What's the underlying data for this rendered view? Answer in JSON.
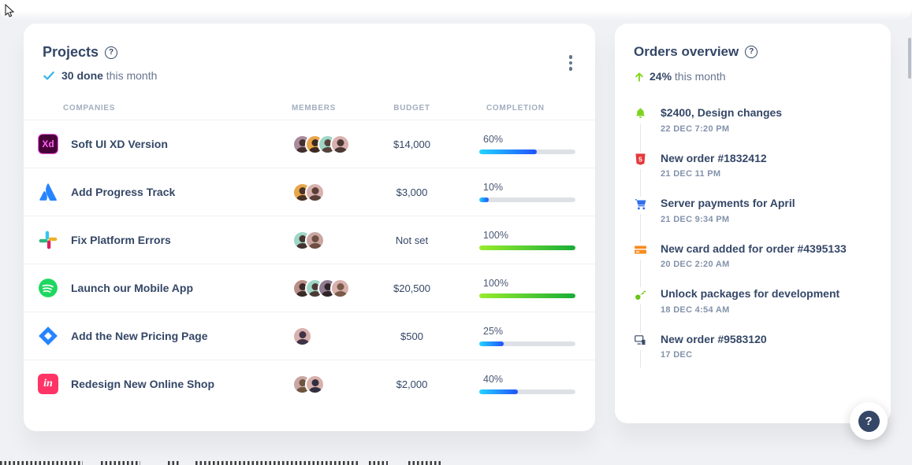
{
  "projects_card": {
    "title": "Projects",
    "title_help_icon": "?",
    "done_count": "30 done",
    "done_rest": "this month",
    "menu_icon": "kebab-menu",
    "columns": [
      "Companies",
      "Members",
      "Budget",
      "Completion"
    ],
    "progress_gradients": {
      "blue": [
        "#21d4fd",
        "#2152ff"
      ],
      "green": [
        "#98ec2d",
        "#17ad37"
      ]
    },
    "rows": [
      {
        "company": "Soft UI XD Version",
        "icon": "adobe-xd",
        "budget": "$14,000",
        "completion": 60,
        "bar": "blue",
        "avatars": [
          {
            "bg": "#a98b9c",
            "fg": "#43302e"
          },
          {
            "bg": "#e8a64a",
            "fg": "#3c2a22"
          },
          {
            "bg": "#9fd6c6",
            "fg": "#57423c"
          },
          {
            "bg": "#d8b0ad",
            "fg": "#4a3835"
          }
        ]
      },
      {
        "company": "Add Progress Track",
        "icon": "atlassian",
        "budget": "$3,000",
        "completion": 10,
        "bar": "blue",
        "avatars": [
          {
            "bg": "#e8a64a",
            "fg": "#4a3226"
          },
          {
            "bg": "#d8b0ad",
            "fg": "#584038"
          }
        ]
      },
      {
        "company": "Fix Platform Errors",
        "icon": "slack",
        "budget": "Not set",
        "completion": 100,
        "bar": "green",
        "avatars": [
          {
            "bg": "#9fd6c6",
            "fg": "#45332f"
          },
          {
            "bg": "#c9a6a2",
            "fg": "#6e4f41"
          }
        ]
      },
      {
        "company": "Launch our Mobile App",
        "icon": "spotify",
        "budget": "$20,500",
        "completion": 100,
        "bar": "green",
        "avatars": [
          {
            "bg": "#b98e87",
            "fg": "#3a2b28"
          },
          {
            "bg": "#9fd6c6",
            "fg": "#4a3a35"
          },
          {
            "bg": "#8f7b8e",
            "fg": "#302428"
          },
          {
            "bg": "#d8b0ad",
            "fg": "#7a5a48"
          }
        ]
      },
      {
        "company": "Add the New Pricing Page",
        "icon": "jira",
        "budget": "$500",
        "completion": 25,
        "bar": "blue",
        "avatars": [
          {
            "bg": "#d8b0ad",
            "fg": "#3f3347"
          }
        ]
      },
      {
        "company": "Redesign New Online Shop",
        "icon": "invision",
        "budget": "$2,000",
        "completion": 40,
        "bar": "blue",
        "avatars": [
          {
            "bg": "#c9a6a2",
            "fg": "#6e5540"
          },
          {
            "bg": "#d8b0ad",
            "fg": "#32303e"
          }
        ]
      }
    ]
  },
  "orders_card": {
    "title": "Orders overview",
    "title_help_icon": "?",
    "growth": "24%",
    "growth_rest": "this month",
    "growth_color": "#82d616",
    "items": [
      {
        "icon": "bell",
        "color": "#7ed321",
        "title": "$2400, Design changes",
        "time": "22 DEC 7:20 PM"
      },
      {
        "icon": "html5",
        "color": "#e5383b",
        "title": "New order #1832412",
        "time": "21 DEC 11 PM"
      },
      {
        "icon": "cart",
        "color": "#2f6fed",
        "title": "Server payments for April",
        "time": "21 DEC 9:34 PM"
      },
      {
        "icon": "credit-card",
        "color": "#f68b1f",
        "title": "New card added for order #4395133",
        "time": "20 DEC 2:20 AM"
      },
      {
        "icon": "key",
        "color": "#69c412",
        "title": "Unlock packages for development",
        "time": "18 DEC 4:54 AM"
      },
      {
        "icon": "money",
        "color": "#344767",
        "title": "New order #9583120",
        "time": "17 DEC"
      }
    ]
  },
  "help_button": {
    "label": "?"
  },
  "colors": {
    "text_primary": "#344767",
    "text_secondary": "#67748e",
    "text_muted": "#8392ab",
    "check_icon": "#38b6e8",
    "background": "#f0f1f5"
  }
}
